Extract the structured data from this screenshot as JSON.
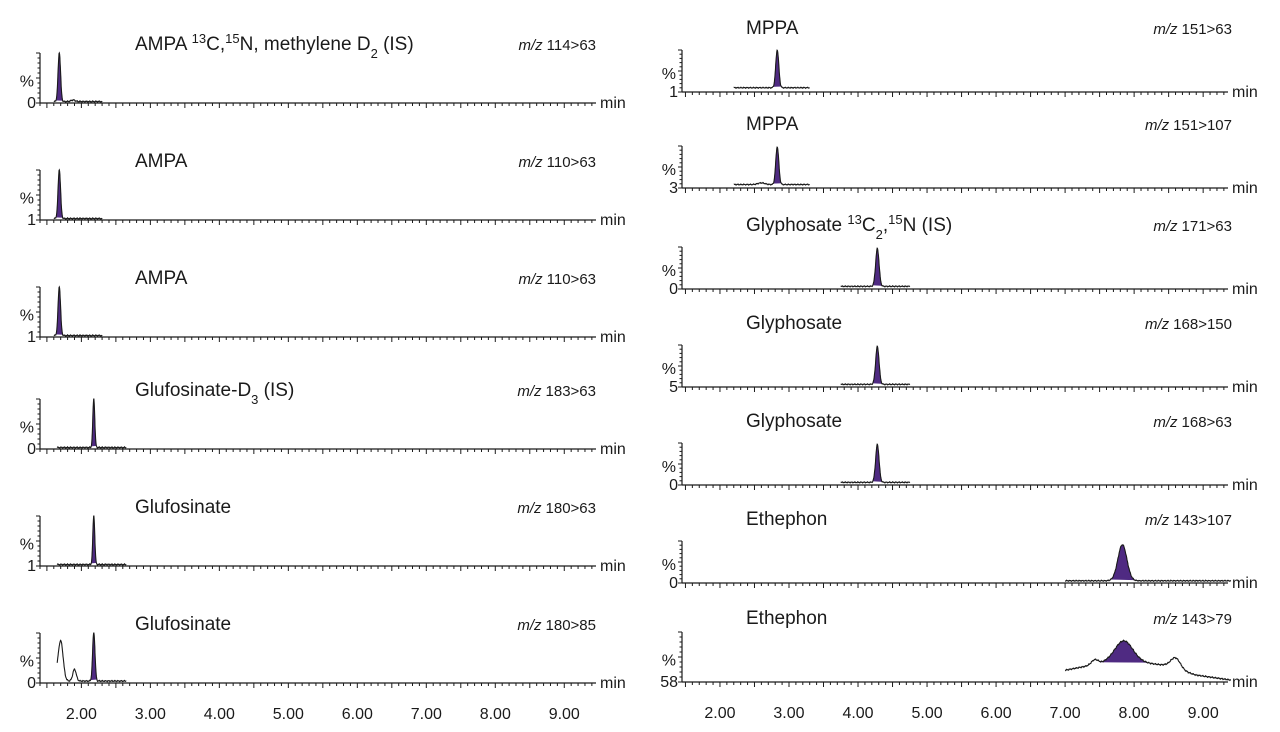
{
  "colors": {
    "peak_fill": "#4f2a82",
    "trace": "#1a1a1a",
    "axis": "#1a1a1a"
  },
  "chart_data": [
    {
      "type": "line",
      "column": "left",
      "xlabel": "min",
      "xlim": [
        1.4,
        9.46
      ],
      "xticks": [
        "2.00",
        "3.00",
        "4.00",
        "5.00",
        "6.00",
        "7.00",
        "8.00",
        "9.00"
      ],
      "panels": [
        {
          "title_parts": [
            {
              "t": "AMPA "
            },
            {
              "t": "13",
              "s": "sup"
            },
            {
              "t": "C,"
            },
            {
              "t": "15",
              "s": "sup"
            },
            {
              "t": "N, methylene D"
            },
            {
              "t": "2",
              "s": "sub"
            },
            {
              "t": " (IS)"
            }
          ],
          "mz_prefix": "m/z",
          "mz": "114>63",
          "ylabel": "%",
          "ymin_label": "0",
          "trace_range": [
            1.6,
            2.3
          ],
          "baseline": [
            [
              1.6,
              1
            ],
            [
              2.3,
              1
            ]
          ],
          "peaks": [
            {
              "rt": 1.68,
              "height": 100,
              "sigma": 0.018,
              "shaded": true
            },
            {
              "rt": 1.88,
              "height": 3,
              "sigma": 0.03,
              "shaded": false
            }
          ]
        },
        {
          "title_parts": [
            {
              "t": "AMPA"
            }
          ],
          "mz_prefix": "m/z",
          "mz": "110>63",
          "ylabel": "%",
          "ymin_label": "1",
          "trace_range": [
            1.6,
            2.3
          ],
          "baseline": [
            [
              1.6,
              1
            ],
            [
              2.3,
              1
            ]
          ],
          "peaks": [
            {
              "rt": 1.68,
              "height": 100,
              "sigma": 0.018,
              "shaded": true
            }
          ]
        },
        {
          "title_parts": [
            {
              "t": "AMPA"
            }
          ],
          "mz_prefix": "m/z",
          "mz": "110>63",
          "ylabel": "%",
          "ymin_label": "1",
          "trace_range": [
            1.6,
            2.3
          ],
          "baseline": [
            [
              1.6,
              1
            ],
            [
              2.3,
              1
            ]
          ],
          "peaks": [
            {
              "rt": 1.68,
              "height": 100,
              "sigma": 0.018,
              "shaded": true
            }
          ]
        },
        {
          "title_parts": [
            {
              "t": "Glufosinate-D"
            },
            {
              "t": "3",
              "s": "sub"
            },
            {
              "t": " (IS)"
            }
          ],
          "mz_prefix": "m/z",
          "mz": "183>63",
          "ylabel": "%",
          "ymin_label": "0",
          "trace_range": [
            1.65,
            2.65
          ],
          "baseline": [
            [
              1.65,
              1
            ],
            [
              2.65,
              1
            ]
          ],
          "peaks": [
            {
              "rt": 2.18,
              "height": 100,
              "sigma": 0.014,
              "shaded": true
            }
          ]
        },
        {
          "title_parts": [
            {
              "t": "Glufosinate"
            }
          ],
          "mz_prefix": "m/z",
          "mz": "180>63",
          "ylabel": "%",
          "ymin_label": "1",
          "trace_range": [
            1.65,
            2.65
          ],
          "baseline": [
            [
              1.65,
              1
            ],
            [
              2.65,
              1
            ]
          ],
          "peaks": [
            {
              "rt": 2.18,
              "height": 100,
              "sigma": 0.014,
              "shaded": true
            }
          ]
        },
        {
          "title_parts": [
            {
              "t": "Glufosinate"
            }
          ],
          "mz_prefix": "m/z",
          "mz": "180>85",
          "ylabel": "%",
          "ymin_label": "0",
          "trace_range": [
            1.65,
            2.65
          ],
          "baseline": [
            [
              1.65,
              10
            ],
            [
              1.7,
              2
            ],
            [
              2.65,
              2
            ]
          ],
          "peaks": [
            {
              "rt": 1.7,
              "height": 82,
              "sigma": 0.035,
              "shaded": false
            },
            {
              "rt": 1.9,
              "height": 24,
              "sigma": 0.025,
              "shaded": false
            },
            {
              "rt": 2.18,
              "height": 100,
              "sigma": 0.017,
              "shaded": true
            }
          ]
        }
      ]
    },
    {
      "type": "line",
      "column": "right",
      "xlabel": "min",
      "xlim": [
        1.45,
        9.36
      ],
      "xticks": [
        "2.00",
        "3.00",
        "4.00",
        "5.00",
        "6.00",
        "7.00",
        "8.00",
        "9.00"
      ],
      "panels": [
        {
          "title_parts": [
            {
              "t": "MPPA"
            }
          ],
          "mz_prefix": "m/z",
          "mz": "151>63",
          "ylabel": "%",
          "ymin_label": "1",
          "trace_range": [
            2.2,
            3.3
          ],
          "baseline": [
            [
              2.2,
              8
            ],
            [
              3.3,
              8
            ]
          ],
          "peaks": [
            {
              "rt": 2.83,
              "height": 92,
              "sigma": 0.022,
              "shaded": true
            }
          ]
        },
        {
          "title_parts": [
            {
              "t": "MPPA"
            }
          ],
          "mz_prefix": "m/z",
          "mz": "151>107",
          "ylabel": "%",
          "ymin_label": "3",
          "trace_range": [
            2.2,
            3.3
          ],
          "baseline": [
            [
              2.2,
              6
            ],
            [
              3.3,
              6
            ]
          ],
          "peaks": [
            {
              "rt": 2.83,
              "height": 92,
              "sigma": 0.022,
              "shaded": true
            },
            {
              "rt": 2.6,
              "height": 4,
              "sigma": 0.05,
              "shaded": false
            }
          ]
        },
        {
          "title_parts": [
            {
              "t": "Glyphosate "
            },
            {
              "t": "13",
              "s": "sup"
            },
            {
              "t": "C"
            },
            {
              "t": "2",
              "s": "sub"
            },
            {
              "t": ","
            },
            {
              "t": "15",
              "s": "sup"
            },
            {
              "t": "N (IS)"
            }
          ],
          "mz_prefix": "m/z",
          "mz": "171>63",
          "ylabel": "%",
          "ymin_label": "0",
          "trace_range": [
            3.75,
            4.75
          ],
          "baseline": [
            [
              3.75,
              4
            ],
            [
              4.75,
              4
            ]
          ],
          "peaks": [
            {
              "rt": 4.28,
              "height": 92,
              "sigma": 0.025,
              "shaded": true
            }
          ]
        },
        {
          "title_parts": [
            {
              "t": "Glyphosate"
            }
          ],
          "mz_prefix": "m/z",
          "mz": "168>150",
          "ylabel": "%",
          "ymin_label": "5",
          "trace_range": [
            3.75,
            4.75
          ],
          "baseline": [
            [
              3.75,
              4
            ],
            [
              4.75,
              4
            ]
          ],
          "peaks": [
            {
              "rt": 4.28,
              "height": 92,
              "sigma": 0.025,
              "shaded": true
            }
          ]
        },
        {
          "title_parts": [
            {
              "t": "Glyphosate"
            }
          ],
          "mz_prefix": "m/z",
          "mz": "168>63",
          "ylabel": "%",
          "ymin_label": "0",
          "trace_range": [
            3.75,
            4.75
          ],
          "baseline": [
            [
              3.75,
              4
            ],
            [
              4.75,
              4
            ]
          ],
          "peaks": [
            {
              "rt": 4.28,
              "height": 92,
              "sigma": 0.025,
              "shaded": true
            }
          ]
        },
        {
          "title_parts": [
            {
              "t": "Ethephon"
            }
          ],
          "mz_prefix": "m/z",
          "mz": "143>107",
          "ylabel": "%",
          "ymin_label": "0",
          "trace_range": [
            7.0,
            9.4
          ],
          "baseline": [
            [
              7.0,
              3
            ],
            [
              9.4,
              3
            ]
          ],
          "peaks": [
            {
              "rt": 7.83,
              "height": 88,
              "sigma": 0.065,
              "shaded": true
            }
          ]
        },
        {
          "title_parts": [
            {
              "t": "Ethephon"
            }
          ],
          "mz_prefix": "m/z",
          "mz": "143>79",
          "ylabel": "%",
          "ymin_label": "58",
          "trace_range": [
            7.0,
            9.4
          ],
          "baseline": [
            [
              7.0,
              22
            ],
            [
              7.3,
              30
            ],
            [
              7.6,
              38
            ],
            [
              8.1,
              38
            ],
            [
              8.45,
              32
            ],
            [
              8.9,
              12
            ],
            [
              9.4,
              2
            ]
          ],
          "peaks": [
            {
              "rt": 7.43,
              "height": 10,
              "sigma": 0.05,
              "shaded": false
            },
            {
              "rt": 7.85,
              "height": 44,
              "sigma": 0.13,
              "shaded": true
            },
            {
              "rt": 8.6,
              "height": 22,
              "sigma": 0.07,
              "shaded": false
            }
          ]
        }
      ]
    }
  ]
}
